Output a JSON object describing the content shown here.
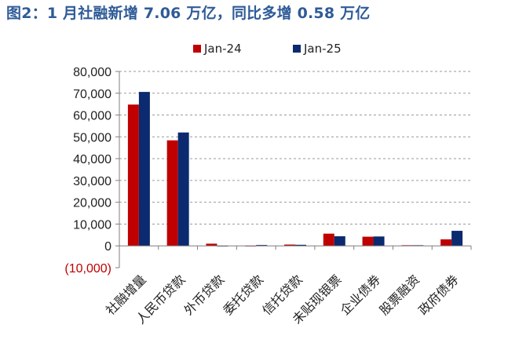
{
  "title": "图2：1 月社融新增 7.06 万亿，同比多增 0.58 万亿",
  "chart_data": {
    "type": "bar",
    "categories": [
      "社融增量",
      "人民币贷款",
      "外币贷款",
      "委托贷款",
      "信托贷款",
      "未贴现银票",
      "企业债券",
      "股票融资",
      "政府债券"
    ],
    "series": [
      {
        "name": "Jan-24",
        "color": "#c00000",
        "values": [
          64800,
          48400,
          1000,
          -100,
          600,
          5600,
          4200,
          300,
          3000
        ]
      },
      {
        "name": "Jan-25",
        "color": "#0b2a6f",
        "values": [
          70600,
          52000,
          -300,
          400,
          500,
          4400,
          4300,
          300,
          6900
        ]
      }
    ],
    "ylim": [
      -10000,
      80000
    ],
    "yticks": [
      80000,
      70000,
      60000,
      50000,
      40000,
      30000,
      20000,
      10000,
      0,
      -10000
    ],
    "ytick_labels": [
      "80,000",
      "70,000",
      "60,000",
      "50,000",
      "40,000",
      "30,000",
      "20,000",
      "10,000",
      "0",
      "(10,000)"
    ],
    "grid": true,
    "legend": "top-center",
    "xlabel": "",
    "ylabel": ""
  }
}
